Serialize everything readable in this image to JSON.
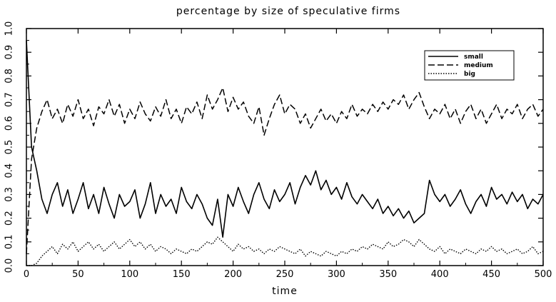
{
  "chart_data": {
    "type": "line",
    "title": "percentage by size of speculative firms",
    "xlabel": "time",
    "ylabel": "",
    "xlim": [
      0,
      500
    ],
    "ylim": [
      0,
      1.0
    ],
    "x_ticks": [
      "0",
      "50",
      "100",
      "150",
      "200",
      "250",
      "300",
      "350",
      "400",
      "450",
      "500"
    ],
    "y_ticks": [
      "0.0",
      "0.1",
      "0.2",
      "0.3",
      "0.4",
      "0.5",
      "0.6",
      "0.7",
      "0.8",
      "0.9",
      "1.0"
    ],
    "grid": false,
    "legend_position": "top-right",
    "series": [
      {
        "name": "small",
        "style": "solid",
        "x": [
          0,
          5,
          10,
          15,
          20,
          25,
          30,
          35,
          40,
          45,
          50,
          55,
          60,
          65,
          70,
          75,
          80,
          85,
          90,
          95,
          100,
          105,
          110,
          115,
          120,
          125,
          130,
          135,
          140,
          145,
          150,
          155,
          160,
          165,
          170,
          175,
          180,
          185,
          190,
          195,
          200,
          205,
          210,
          215,
          220,
          225,
          230,
          235,
          240,
          245,
          250,
          255,
          260,
          265,
          270,
          275,
          280,
          285,
          290,
          295,
          300,
          305,
          310,
          315,
          320,
          325,
          330,
          335,
          340,
          345,
          350,
          355,
          360,
          365,
          370,
          375,
          380,
          385,
          390,
          395,
          400,
          405,
          410,
          415,
          420,
          425,
          430,
          435,
          440,
          445,
          450,
          455,
          460,
          465,
          470,
          475,
          480,
          485,
          490,
          495,
          500
        ],
        "values": [
          0.95,
          0.5,
          0.4,
          0.28,
          0.22,
          0.3,
          0.35,
          0.25,
          0.32,
          0.22,
          0.28,
          0.35,
          0.24,
          0.3,
          0.22,
          0.33,
          0.26,
          0.2,
          0.3,
          0.25,
          0.27,
          0.32,
          0.2,
          0.26,
          0.35,
          0.22,
          0.3,
          0.25,
          0.28,
          0.22,
          0.33,
          0.27,
          0.24,
          0.3,
          0.26,
          0.2,
          0.17,
          0.28,
          0.12,
          0.3,
          0.25,
          0.33,
          0.27,
          0.22,
          0.3,
          0.35,
          0.28,
          0.24,
          0.32,
          0.27,
          0.3,
          0.35,
          0.26,
          0.33,
          0.38,
          0.34,
          0.4,
          0.32,
          0.36,
          0.3,
          0.33,
          0.28,
          0.35,
          0.29,
          0.26,
          0.3,
          0.27,
          0.24,
          0.28,
          0.22,
          0.25,
          0.21,
          0.24,
          0.2,
          0.23,
          0.18,
          0.2,
          0.22,
          0.36,
          0.3,
          0.27,
          0.3,
          0.25,
          0.28,
          0.32,
          0.26,
          0.22,
          0.27,
          0.3,
          0.25,
          0.33,
          0.28,
          0.3,
          0.26,
          0.31,
          0.27,
          0.3,
          0.24,
          0.28,
          0.26,
          0.3
        ]
      },
      {
        "name": "medium",
        "style": "dashed",
        "x": [
          0,
          5,
          10,
          15,
          20,
          25,
          30,
          35,
          40,
          45,
          50,
          55,
          60,
          65,
          70,
          75,
          80,
          85,
          90,
          95,
          100,
          105,
          110,
          115,
          120,
          125,
          130,
          135,
          140,
          145,
          150,
          155,
          160,
          165,
          170,
          175,
          180,
          185,
          190,
          195,
          200,
          205,
          210,
          215,
          220,
          225,
          230,
          235,
          240,
          245,
          250,
          255,
          260,
          265,
          270,
          275,
          280,
          285,
          290,
          295,
          300,
          305,
          310,
          315,
          320,
          325,
          330,
          335,
          340,
          345,
          350,
          355,
          360,
          365,
          370,
          375,
          380,
          385,
          390,
          395,
          400,
          405,
          410,
          415,
          420,
          425,
          430,
          435,
          440,
          445,
          450,
          455,
          460,
          465,
          470,
          475,
          480,
          485,
          490,
          495,
          500
        ],
        "values": [
          0.05,
          0.45,
          0.58,
          0.65,
          0.7,
          0.62,
          0.66,
          0.6,
          0.68,
          0.63,
          0.7,
          0.62,
          0.66,
          0.59,
          0.67,
          0.64,
          0.7,
          0.63,
          0.68,
          0.6,
          0.66,
          0.62,
          0.69,
          0.64,
          0.61,
          0.67,
          0.63,
          0.7,
          0.62,
          0.66,
          0.6,
          0.67,
          0.64,
          0.69,
          0.62,
          0.72,
          0.66,
          0.7,
          0.75,
          0.65,
          0.71,
          0.66,
          0.69,
          0.63,
          0.6,
          0.67,
          0.55,
          0.62,
          0.68,
          0.72,
          0.64,
          0.68,
          0.66,
          0.6,
          0.64,
          0.58,
          0.62,
          0.66,
          0.61,
          0.64,
          0.6,
          0.65,
          0.62,
          0.68,
          0.63,
          0.66,
          0.64,
          0.68,
          0.65,
          0.69,
          0.66,
          0.7,
          0.68,
          0.72,
          0.66,
          0.7,
          0.73,
          0.67,
          0.62,
          0.66,
          0.64,
          0.68,
          0.62,
          0.66,
          0.6,
          0.65,
          0.68,
          0.62,
          0.66,
          0.6,
          0.64,
          0.68,
          0.62,
          0.66,
          0.64,
          0.68,
          0.62,
          0.66,
          0.68,
          0.63,
          0.66
        ]
      },
      {
        "name": "big",
        "style": "dotted",
        "x": [
          0,
          5,
          10,
          15,
          20,
          25,
          30,
          35,
          40,
          45,
          50,
          55,
          60,
          65,
          70,
          75,
          80,
          85,
          90,
          95,
          100,
          105,
          110,
          115,
          120,
          125,
          130,
          135,
          140,
          145,
          150,
          155,
          160,
          165,
          170,
          175,
          180,
          185,
          190,
          195,
          200,
          205,
          210,
          215,
          220,
          225,
          230,
          235,
          240,
          245,
          250,
          255,
          260,
          265,
          270,
          275,
          280,
          285,
          290,
          295,
          300,
          305,
          310,
          315,
          320,
          325,
          330,
          335,
          340,
          345,
          350,
          355,
          360,
          365,
          370,
          375,
          380,
          385,
          390,
          395,
          400,
          405,
          410,
          415,
          420,
          425,
          430,
          435,
          440,
          445,
          450,
          455,
          460,
          465,
          470,
          475,
          480,
          485,
          490,
          495,
          500
        ],
        "values": [
          0.0,
          0.0,
          0.01,
          0.04,
          0.06,
          0.08,
          0.05,
          0.09,
          0.07,
          0.1,
          0.06,
          0.08,
          0.1,
          0.07,
          0.09,
          0.06,
          0.08,
          0.1,
          0.07,
          0.09,
          0.11,
          0.08,
          0.1,
          0.07,
          0.09,
          0.06,
          0.08,
          0.07,
          0.05,
          0.07,
          0.06,
          0.05,
          0.07,
          0.06,
          0.08,
          0.1,
          0.09,
          0.12,
          0.1,
          0.08,
          0.06,
          0.09,
          0.07,
          0.08,
          0.06,
          0.07,
          0.05,
          0.07,
          0.06,
          0.08,
          0.07,
          0.06,
          0.05,
          0.07,
          0.04,
          0.06,
          0.05,
          0.04,
          0.06,
          0.05,
          0.04,
          0.06,
          0.05,
          0.07,
          0.06,
          0.08,
          0.07,
          0.09,
          0.08,
          0.07,
          0.1,
          0.08,
          0.09,
          0.11,
          0.1,
          0.08,
          0.11,
          0.09,
          0.07,
          0.06,
          0.08,
          0.05,
          0.07,
          0.06,
          0.05,
          0.07,
          0.06,
          0.05,
          0.07,
          0.06,
          0.08,
          0.06,
          0.07,
          0.05,
          0.06,
          0.07,
          0.05,
          0.06,
          0.08,
          0.05,
          0.06
        ]
      }
    ]
  }
}
